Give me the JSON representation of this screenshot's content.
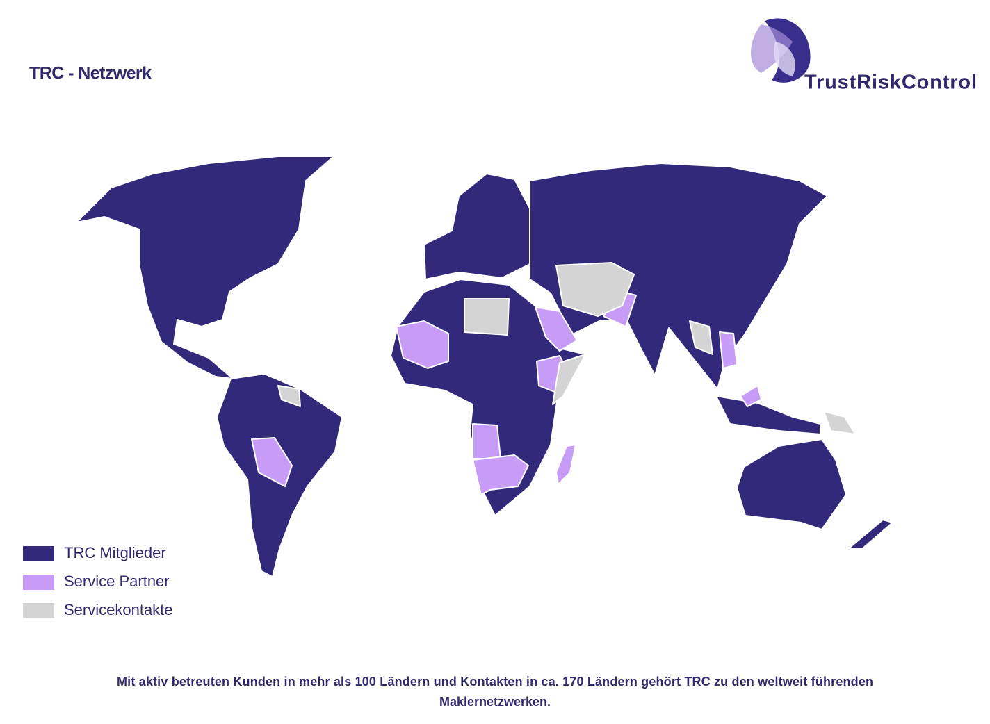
{
  "title": "TRC - Netzwerk",
  "logo": {
    "text": "TrustRiskControl"
  },
  "legend": [
    {
      "label": "TRC Mitglieder",
      "color": "#32297a"
    },
    {
      "label": "Service Partner",
      "color": "#c79cf7"
    },
    {
      "label": "Servicekontakte",
      "color": "#d4d4d4"
    }
  ],
  "footer": [
    "Mit aktiv betreuten Kunden in mehr als 100 Ländern und Kontakten in ca. 170 Ländern gehört TRC zu den weltweit führenden",
    "Maklernetzwerken."
  ]
}
